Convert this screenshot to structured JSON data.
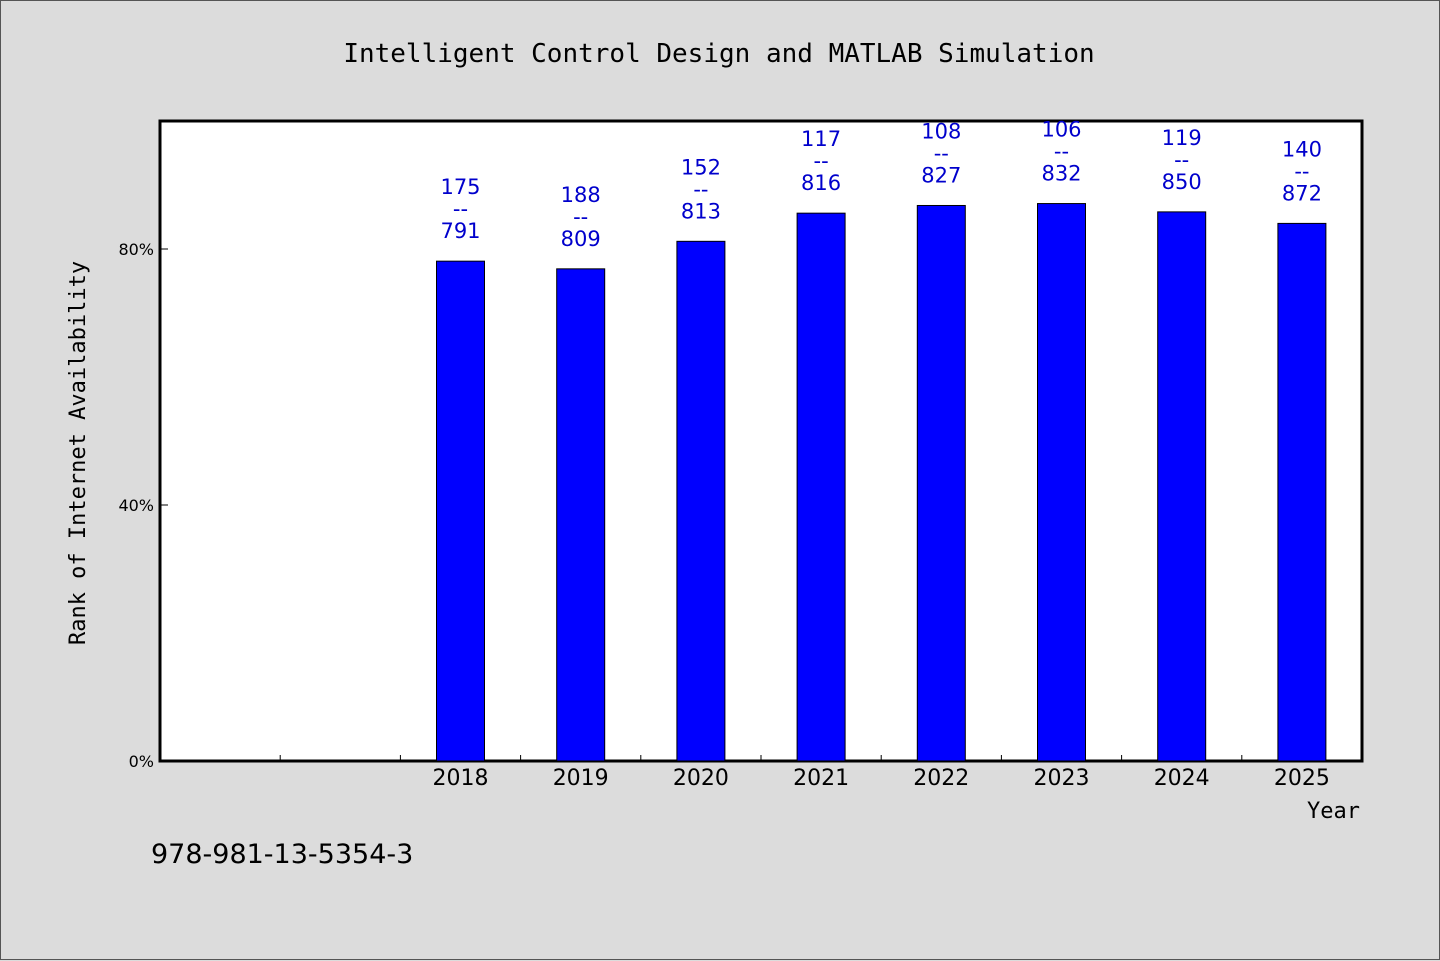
{
  "chart_data": {
    "type": "bar",
    "title": "Intelligent Control Design and MATLAB Simulation",
    "xlabel": "Year",
    "ylabel": "Rank of Internet Availability",
    "y_tick_labels": [
      "0%",
      "40%",
      "80%"
    ],
    "y_ticks": [
      0,
      40,
      80
    ],
    "ylim": [
      0,
      100
    ],
    "categories": [
      "",
      "",
      "2018",
      "2019",
      "2020",
      "2021",
      "2022",
      "2023",
      "2024",
      "2025"
    ],
    "values": [
      null,
      null,
      78.1,
      76.9,
      81.2,
      85.6,
      86.8,
      87.1,
      85.8,
      84.0
    ],
    "bar_labels": [
      {
        "top": "",
        "bottom": ""
      },
      {
        "top": "",
        "bottom": ""
      },
      {
        "top": "175",
        "bottom": "791"
      },
      {
        "top": "188",
        "bottom": "809"
      },
      {
        "top": "152",
        "bottom": "813"
      },
      {
        "top": "117",
        "bottom": "816"
      },
      {
        "top": "108",
        "bottom": "827"
      },
      {
        "top": "106",
        "bottom": "832"
      },
      {
        "top": "119",
        "bottom": "850"
      },
      {
        "top": "140",
        "bottom": "872"
      }
    ],
    "label_separator": "--",
    "grid": false,
    "bar_color": "#0000ff",
    "label_color": "#0000cc",
    "background": "#dcdcdc",
    "plot_background": "#ffffff"
  },
  "footer_text": "978-981-13-5354-3"
}
